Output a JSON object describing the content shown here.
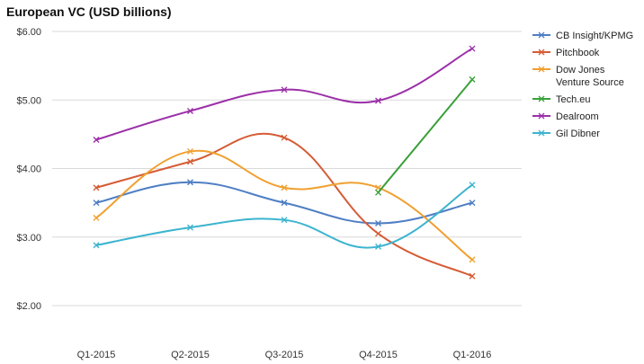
{
  "chart_data": {
    "type": "line",
    "title": "European VC (USD billions)",
    "categories": [
      "Q1-2015",
      "Q2-2015",
      "Q3-2015",
      "Q4-2015",
      "Q1-2016"
    ],
    "y_ticks": [
      "$2.00",
      "$3.00",
      "$4.00",
      "$5.00",
      "$6.00"
    ],
    "ylim": [
      2,
      6
    ],
    "xlabel": "",
    "ylabel": "",
    "grid": true,
    "legend_position": "right",
    "series": [
      {
        "name": "CB Insight/KPMG",
        "legend_lines": [
          "CB Insight/KPMG"
        ],
        "color": "#4f7fc4",
        "values": [
          3.5,
          3.8,
          3.5,
          3.2,
          3.5
        ]
      },
      {
        "name": "Pitchbook",
        "legend_lines": [
          "Pitchbook"
        ],
        "color": "#d55c36",
        "values": [
          3.72,
          4.1,
          4.45,
          3.05,
          2.43
        ]
      },
      {
        "name": "Dow Jones Venture Source",
        "legend_lines": [
          "Dow Jones",
          "Venture Source"
        ],
        "color": "#f0a030",
        "values": [
          3.28,
          4.25,
          3.72,
          3.72,
          2.67
        ]
      },
      {
        "name": "Tech.eu",
        "legend_lines": [
          "Tech.eu"
        ],
        "color": "#3aa03a",
        "values": [
          null,
          null,
          null,
          3.65,
          5.3
        ]
      },
      {
        "name": "Dealroom",
        "legend_lines": [
          "Dealroom"
        ],
        "color": "#9b30a8",
        "values": [
          4.42,
          4.84,
          5.15,
          4.99,
          5.75
        ]
      },
      {
        "name": "Gil Dibner",
        "legend_lines": [
          "Gil Dibner"
        ],
        "color": "#3cb4cf",
        "values": [
          2.88,
          3.14,
          3.25,
          2.86,
          3.76
        ]
      }
    ]
  }
}
